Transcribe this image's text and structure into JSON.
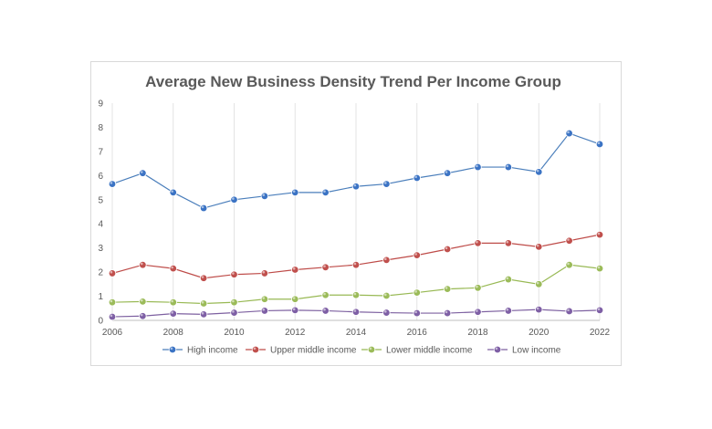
{
  "chart_data": {
    "type": "line",
    "title": "Average New Business Density Trend Per Income Group",
    "xlabel": "",
    "ylabel": "",
    "x": [
      2006,
      2007,
      2008,
      2009,
      2010,
      2011,
      2012,
      2013,
      2014,
      2015,
      2016,
      2017,
      2018,
      2019,
      2020,
      2021,
      2022
    ],
    "x_tick_labels": [
      "2006",
      "2008",
      "2010",
      "2012",
      "2014",
      "2016",
      "2018",
      "2020",
      "2022"
    ],
    "y_tick_labels": [
      "0",
      "1",
      "2",
      "3",
      "4",
      "5",
      "6",
      "7",
      "8",
      "9"
    ],
    "ylim": [
      0,
      9
    ],
    "grid": "vertical",
    "legend_position": "bottom",
    "series": [
      {
        "name": "High income",
        "color": "#4a7ebb",
        "marker_fill": "#3b73c4",
        "values": [
          5.65,
          6.1,
          5.3,
          4.65,
          5.0,
          5.15,
          5.3,
          5.3,
          5.55,
          5.65,
          5.9,
          6.1,
          6.35,
          6.35,
          6.15,
          7.75,
          7.3
        ]
      },
      {
        "name": "Upper middle income",
        "color": "#be4b48",
        "marker_fill": "#c0504d",
        "values": [
          1.95,
          2.3,
          2.15,
          1.75,
          1.9,
          1.95,
          2.1,
          2.2,
          2.3,
          2.5,
          2.7,
          2.95,
          3.2,
          3.2,
          3.05,
          3.3,
          3.55
        ]
      },
      {
        "name": "Lower middle income",
        "color": "#98b954",
        "marker_fill": "#9bbb59",
        "values": [
          0.75,
          0.78,
          0.75,
          0.7,
          0.75,
          0.88,
          0.88,
          1.05,
          1.05,
          1.02,
          1.15,
          1.3,
          1.35,
          1.7,
          1.5,
          2.3,
          2.15
        ]
      },
      {
        "name": "Low income",
        "color": "#7d60a0",
        "marker_fill": "#7e5fa5",
        "values": [
          0.15,
          0.18,
          0.28,
          0.25,
          0.32,
          0.4,
          0.42,
          0.4,
          0.35,
          0.32,
          0.3,
          0.3,
          0.35,
          0.4,
          0.45,
          0.38,
          0.42
        ]
      }
    ]
  }
}
